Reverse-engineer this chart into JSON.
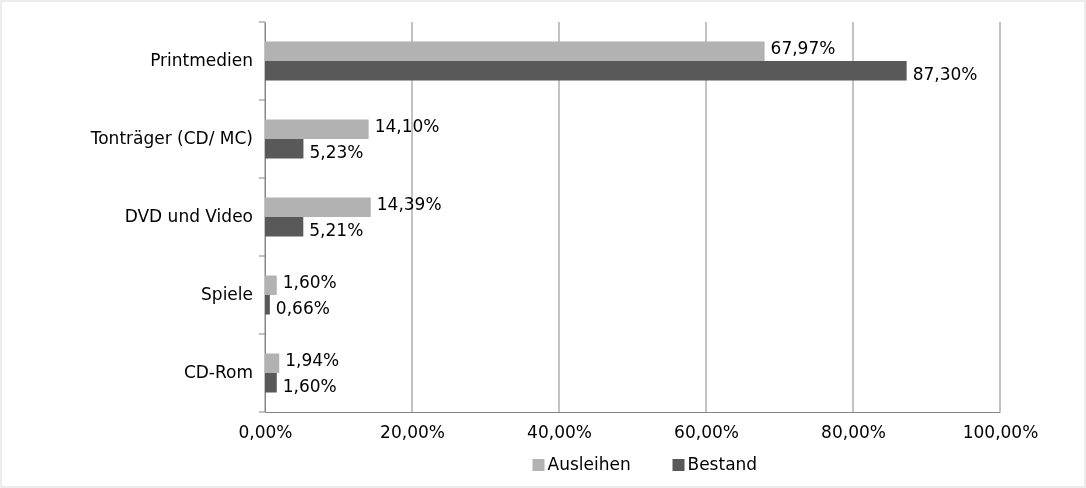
{
  "chart_data": {
    "type": "bar",
    "orientation": "horizontal",
    "categories": [
      "Printmedien",
      "Tonträger (CD/ MC)",
      "DVD und Video",
      "Spiele",
      "CD-Rom"
    ],
    "series": [
      {
        "name": "Ausleihen",
        "color": "#b2b2b2",
        "values": [
          67.97,
          14.1,
          14.39,
          1.6,
          1.94
        ],
        "value_labels": [
          "67,97%",
          "14,10%",
          "14,39%",
          "1,60%",
          "1,94%"
        ]
      },
      {
        "name": "Bestand",
        "color": "#595959",
        "values": [
          87.3,
          5.23,
          5.21,
          0.66,
          1.6
        ],
        "value_labels": [
          "87,30%",
          "5,23%",
          "5,21%",
          "0,66%",
          "1,60%"
        ]
      }
    ],
    "xlim": [
      0,
      100
    ],
    "xticks": [
      {
        "value": 0,
        "label": "0,00%"
      },
      {
        "value": 20,
        "label": "20,00%"
      },
      {
        "value": 40,
        "label": "40,00%"
      },
      {
        "value": 60,
        "label": "60,00%"
      },
      {
        "value": 80,
        "label": "80,00%"
      },
      {
        "value": 100,
        "label": "100,00%"
      }
    ],
    "grid": "x",
    "legend": "bottom"
  }
}
